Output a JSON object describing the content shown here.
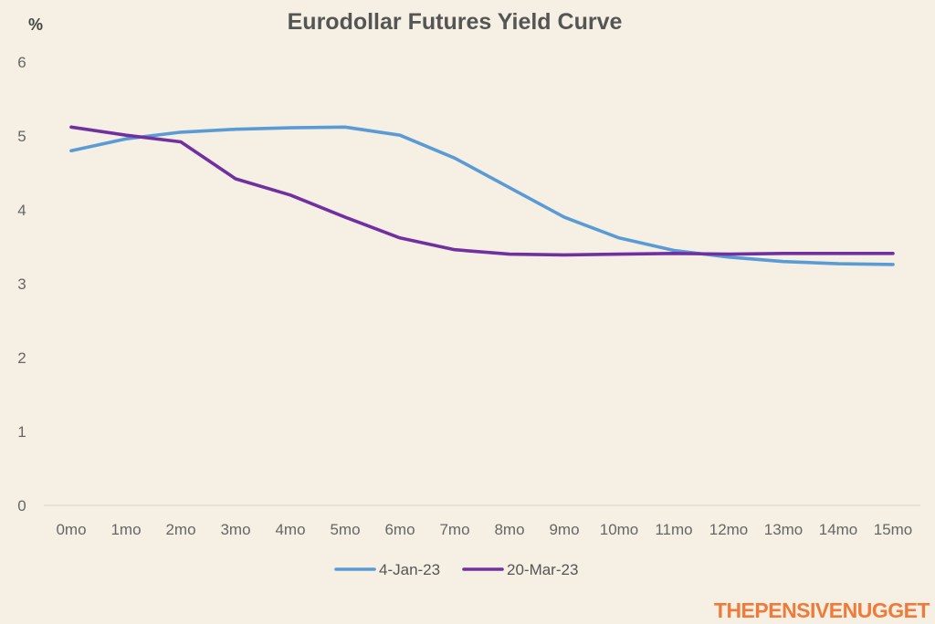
{
  "chart_data": {
    "type": "line",
    "title": "Eurodollar Futures Yield Curve",
    "ylabel": "%",
    "xlabel": "",
    "ylim": [
      0,
      6
    ],
    "yticks": [
      0,
      1,
      2,
      3,
      4,
      5,
      6
    ],
    "categories": [
      "0mo",
      "1mo",
      "2mo",
      "3mo",
      "4mo",
      "5mo",
      "6mo",
      "7mo",
      "8mo",
      "9mo",
      "10mo",
      "11mo",
      "12mo",
      "13mo",
      "14mo",
      "15mo"
    ],
    "grid": false,
    "legend_position": "bottom",
    "series": [
      {
        "name": "4-Jan-23",
        "color": "#5b9bd5",
        "values": [
          4.8,
          4.96,
          5.05,
          5.09,
          5.11,
          5.12,
          5.01,
          4.7,
          4.3,
          3.9,
          3.62,
          3.45,
          3.36,
          3.3,
          3.27,
          3.26
        ]
      },
      {
        "name": "20-Mar-23",
        "color": "#7030a0",
        "values": [
          5.12,
          5.01,
          4.92,
          4.42,
          4.2,
          3.9,
          3.62,
          3.46,
          3.4,
          3.39,
          3.4,
          3.41,
          3.4,
          3.41,
          3.41,
          3.41
        ]
      }
    ]
  },
  "watermark": "THEPENSIVENUGGET"
}
